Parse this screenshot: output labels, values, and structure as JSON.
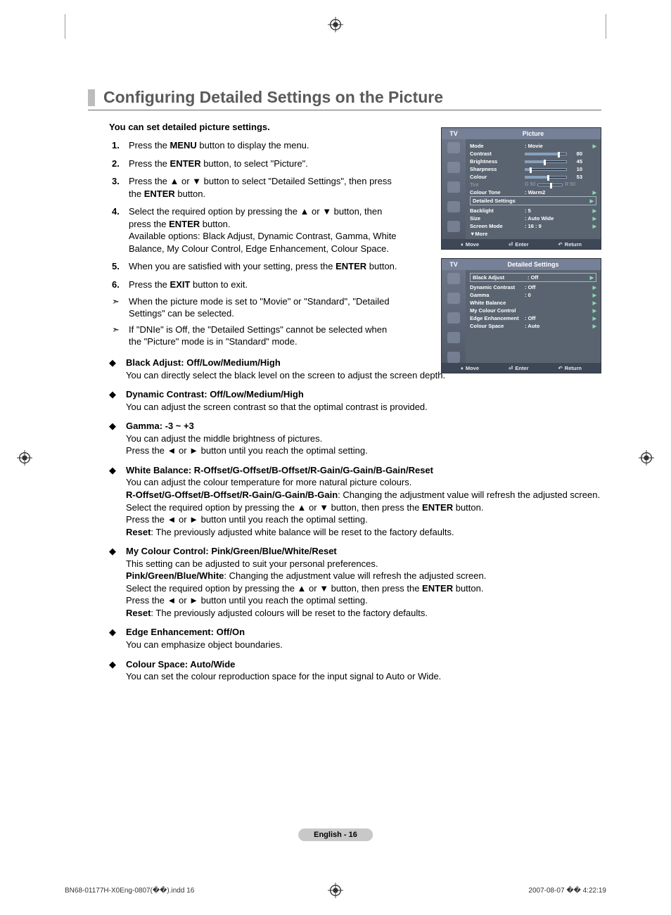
{
  "title": "Configuring Detailed Settings on the Picture",
  "intro": "You can set detailed picture settings.",
  "steps": [
    {
      "num": "1.",
      "html": "Press the <b>MENU</b> button to display the menu."
    },
    {
      "num": "2.",
      "html": "Press the <b>ENTER</b> button, to select \"Picture\"."
    },
    {
      "num": "3.",
      "html": "Press the ▲ or ▼ button to select \"Detailed Settings\", then press the <b>ENTER</b> button."
    },
    {
      "num": "4.",
      "html": "Select the required option by pressing the ▲ or ▼ button, then press the <b>ENTER</b> button.<br>Available options: Black Adjust, Dynamic Contrast, Gamma, White Balance, My Colour Control, Edge Enhancement, Colour Space."
    },
    {
      "num": "5.",
      "html": "When you are satisfied with your setting, press the <b>ENTER</b> button."
    },
    {
      "num": "6.",
      "html": "Press the <b>EXIT</b> button to exit."
    }
  ],
  "notes": [
    "When the picture mode is set to \"Movie\" or \"Standard\", \"Detailed Settings\" can be selected.",
    "If \"DNIe\" is Off, the \"Detailed Settings\" cannot be selected when the \"Picture\" mode is in \"Standard\" mode."
  ],
  "diamond_items": [
    {
      "title": "Black Adjust: Off/Low/Medium/High",
      "body": "You can directly select the black level on the screen to adjust the screen depth."
    },
    {
      "title": "Dynamic Contrast: Off/Low/Medium/High",
      "body": "You can adjust the screen contrast so that the optimal contrast is provided."
    },
    {
      "title": "Gamma: -3 ~ +3",
      "body": "You can adjust the middle brightness of pictures.<br>Press the ◄ or ► button until you reach the optimal setting."
    },
    {
      "title": "White Balance: R-Offset/G-Offset/B-Offset/R-Gain/G-Gain/B-Gain/Reset",
      "body": "You can adjust the colour temperature for more natural picture colours.<br><b>R-Offset/G-Offset/B-Offset/R-Gain/G-Gain/B-Gain</b>: Changing the adjustment value will refresh the adjusted screen.<br>Select the required option by pressing the ▲ or ▼ button, then press the <b>ENTER</b> button.<br>Press the ◄ or ► button until you reach the optimal setting.<br><b>Reset</b>: The previously adjusted white balance will be reset to the factory defaults."
    },
    {
      "title": "My Colour Control: Pink/Green/Blue/White/Reset",
      "body": "This setting can be adjusted to suit your personal preferences.<br><b>Pink/Green/Blue/White</b>: Changing the adjustment value will refresh the adjusted screen.<br>Select the required option by pressing the ▲ or ▼ button, then press the <b>ENTER</b> button.<br>Press the ◄ or ► button until you reach the optimal setting.<br><b>Reset</b>: The previously adjusted colours will be reset to the factory defaults."
    },
    {
      "title": "Edge Enhancement: Off/On",
      "body": "You can emphasize object boundaries."
    },
    {
      "title": "Colour Space: Auto/Wide",
      "body": "You can set the colour reproduction space for the input signal to Auto or Wide."
    }
  ],
  "osd1": {
    "header_left": "TV",
    "header_title": "Picture",
    "mode": "Mode",
    "mode_val": ":  Movie",
    "contrast": "Contrast",
    "contrast_num": "80",
    "contrast_pct": 80,
    "brightness": "Brightness",
    "brightness_num": "45",
    "brightness_pct": 45,
    "sharpness": "Sharpness",
    "sharpness_num": "10",
    "sharpness_pct": 10,
    "colour": "Colour",
    "colour_num": "53",
    "colour_pct": 53,
    "tint": "Tint",
    "tint_g": "G 50",
    "tint_r": "R 50",
    "colour_tone": "Colour Tone",
    "colour_tone_val": ":  Warm2",
    "detailed": "Detailed Settings",
    "backlight": "Backlight",
    "backlight_val": ":  5",
    "size": "Size",
    "size_val": ":  Auto Wide",
    "screen_mode": "Screen Mode",
    "screen_mode_val": ":  16 : 9",
    "more": "▼More",
    "move": "Move",
    "enter": "Enter",
    "return": "Return"
  },
  "osd2": {
    "header_left": "TV",
    "header_title": "Detailed Settings",
    "rows": [
      {
        "label": "Black Adjust",
        "val": ":  Off"
      },
      {
        "label": "Dynamic Contrast",
        "val": ":  Off"
      },
      {
        "label": "Gamma",
        "val": ":  0"
      },
      {
        "label": "White Balance",
        "val": ""
      },
      {
        "label": "My Colour Control",
        "val": ""
      },
      {
        "label": "Edge Enhancement",
        "val": ":  Off"
      },
      {
        "label": "Colour Space",
        "val": ":  Auto"
      }
    ],
    "move": "Move",
    "enter": "Enter",
    "return": "Return"
  },
  "page_num": "English - 16",
  "footer_left": "BN68-01177H-X0Eng-0807(��).indd   16",
  "footer_right": "2007-08-07   �� 4:22:19"
}
